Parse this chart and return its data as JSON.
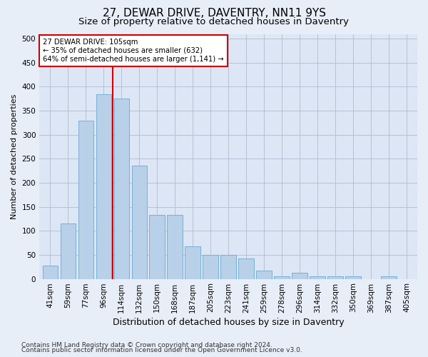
{
  "title": "27, DEWAR DRIVE, DAVENTRY, NN11 9YS",
  "subtitle": "Size of property relative to detached houses in Daventry",
  "xlabel": "Distribution of detached houses by size in Daventry",
  "ylabel": "Number of detached properties",
  "categories": [
    "41sqm",
    "59sqm",
    "77sqm",
    "96sqm",
    "114sqm",
    "132sqm",
    "150sqm",
    "168sqm",
    "187sqm",
    "205sqm",
    "223sqm",
    "241sqm",
    "259sqm",
    "278sqm",
    "296sqm",
    "314sqm",
    "332sqm",
    "350sqm",
    "369sqm",
    "387sqm",
    "405sqm"
  ],
  "values": [
    27,
    115,
    330,
    385,
    375,
    235,
    133,
    133,
    68,
    50,
    50,
    43,
    17,
    5,
    12,
    5,
    5,
    5,
    0,
    5,
    0
  ],
  "bar_color": "#b8d0e8",
  "bar_edge_color": "#6aaad4",
  "vline_color": "#cc0000",
  "annotation_text": "27 DEWAR DRIVE: 105sqm\n← 35% of detached houses are smaller (632)\n64% of semi-detached houses are larger (1,141) →",
  "annotation_box_color": "#ffffff",
  "annotation_box_edge": "#cc0000",
  "ylim": [
    0,
    510
  ],
  "yticks": [
    0,
    50,
    100,
    150,
    200,
    250,
    300,
    350,
    400,
    450,
    500
  ],
  "footnote1": "Contains HM Land Registry data © Crown copyright and database right 2024.",
  "footnote2": "Contains public sector information licensed under the Open Government Licence v3.0.",
  "bg_color": "#e8eef8",
  "plot_bg_color": "#dce6f5",
  "title_fontsize": 11,
  "subtitle_fontsize": 9.5,
  "xlabel_fontsize": 9,
  "ylabel_fontsize": 8,
  "tick_fontsize": 7.5,
  "footnote_fontsize": 6.5
}
